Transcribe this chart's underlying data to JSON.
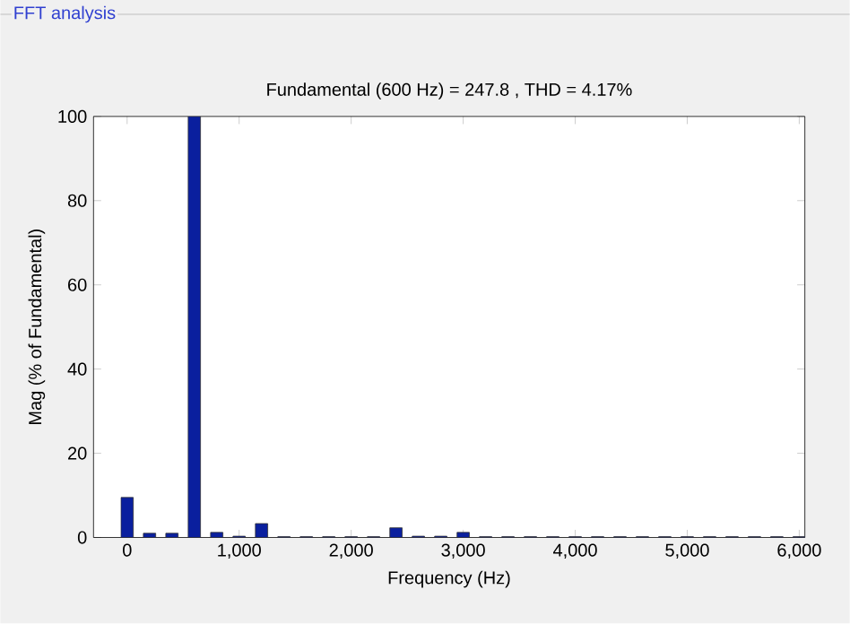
{
  "chart_data": {
    "type": "bar",
    "title": "Fundamental (600 Hz) = 247.8 , THD = 4.17%",
    "xlabel": "Frequency (Hz)",
    "ylabel": "Mag (% of Fundamental)",
    "annotations": [
      "FFT analysis"
    ],
    "x": [
      0,
      200,
      400,
      600,
      800,
      1000,
      1200,
      1400,
      1600,
      1800,
      2000,
      2200,
      2400,
      2600,
      2800,
      3000,
      3200,
      3400,
      3600,
      3800,
      4000,
      4200,
      4400,
      4600,
      4800,
      5000,
      5200,
      5400,
      5600,
      5800,
      6000
    ],
    "values": [
      9.5,
      1,
      1,
      100,
      1.2,
      0.3,
      3.3,
      0.2,
      0.2,
      0.2,
      0.2,
      0.2,
      2.3,
      0.3,
      0.3,
      1.2,
      0.2,
      0.2,
      0.2,
      0.2,
      0.2,
      0.2,
      0.2,
      0.2,
      0.2,
      0.2,
      0.2,
      0.2,
      0.2,
      0.2,
      0.2
    ],
    "color": "#0a1f9e",
    "xlim": [
      -300,
      6050
    ],
    "ylim": [
      0,
      100
    ],
    "xticks": [
      {
        "value": 0,
        "label": "0"
      },
      {
        "value": 1000,
        "label": "1,000"
      },
      {
        "value": 2000,
        "label": "2,000"
      },
      {
        "value": 3000,
        "label": "3,000"
      },
      {
        "value": 4000,
        "label": "4,000"
      },
      {
        "value": 5000,
        "label": "5,000"
      },
      {
        "value": 6000,
        "label": "6,000"
      }
    ],
    "yticks": [
      0,
      20,
      40,
      60,
      80,
      100
    ],
    "grid": false
  }
}
